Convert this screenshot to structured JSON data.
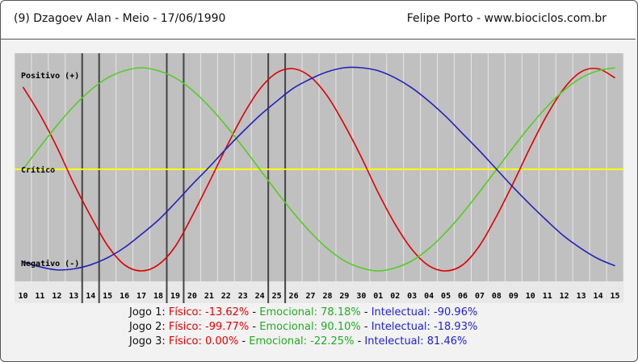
{
  "header": {
    "left": "(9)  Dzagoev Alan - Meio -  17/06/1990",
    "right": "Felipe Porto  -  www.biociclos.com.br"
  },
  "chart_data": {
    "type": "line",
    "x": [
      "10",
      "11",
      "12",
      "13",
      "14",
      "15",
      "16",
      "17",
      "18",
      "19",
      "20",
      "21",
      "22",
      "23",
      "24",
      "25",
      "26",
      "27",
      "28",
      "29",
      "30",
      "01",
      "02",
      "03",
      "04",
      "05",
      "06",
      "07",
      "08",
      "09",
      "10",
      "11",
      "12",
      "13",
      "14",
      "15"
    ],
    "ylim": [
      -1,
      1
    ],
    "grid": true,
    "level_labels": {
      "positive": "Positivo (+)",
      "critical": "Crítico",
      "negative": "Negativo (-)"
    },
    "series": [
      {
        "name": "Físico",
        "color": "#e00000",
        "values": [
          0.81,
          0.54,
          0.22,
          -0.14,
          -0.46,
          -0.75,
          -0.94,
          -1.0,
          -0.94,
          -0.76,
          -0.46,
          -0.13,
          0.21,
          0.53,
          0.79,
          0.95,
          0.99,
          0.91,
          0.72,
          0.44,
          0.12,
          -0.23,
          -0.54,
          -0.79,
          -0.95,
          -1.0,
          -0.94,
          -0.75,
          -0.46,
          -0.13,
          0.22,
          0.54,
          0.8,
          0.96,
          0.99,
          0.9
        ]
      },
      {
        "name": "Emocional",
        "color": "#55cc22",
        "values": [
          0.0,
          0.22,
          0.43,
          0.62,
          0.78,
          0.9,
          0.97,
          1.0,
          0.97,
          0.9,
          0.78,
          0.62,
          0.43,
          0.22,
          0.0,
          -0.22,
          -0.43,
          -0.62,
          -0.78,
          -0.9,
          -0.97,
          -1.0,
          -0.97,
          -0.9,
          -0.78,
          -0.62,
          -0.43,
          -0.22,
          0.0,
          0.22,
          0.43,
          0.62,
          0.78,
          0.9,
          0.97,
          1.0
        ]
      },
      {
        "name": "Intelectual",
        "color": "#2222bb",
        "values": [
          -0.91,
          -0.96,
          -0.99,
          -0.98,
          -0.94,
          -0.87,
          -0.77,
          -0.64,
          -0.5,
          -0.33,
          -0.15,
          0.02,
          0.2,
          0.37,
          0.53,
          0.67,
          0.8,
          0.89,
          0.96,
          1.0,
          1.0,
          0.97,
          0.9,
          0.8,
          0.67,
          0.52,
          0.35,
          0.18,
          0.0,
          -0.18,
          -0.35,
          -0.51,
          -0.66,
          -0.78,
          -0.88,
          -0.95
        ]
      }
    ],
    "markers": [
      "13",
      "14",
      "18",
      "19",
      "24",
      "25"
    ]
  },
  "footer": {
    "jogos": [
      {
        "label": "Jogo 1:",
        "fis": "Físico: -13.62%",
        "emo": "Emocional: 78.18%",
        "int": "Intelectual: -90.96%"
      },
      {
        "label": "Jogo 2:",
        "fis": "Físico: -99.77%",
        "emo": "Emocional: 90.10%",
        "int": "Intelectual: -18.93%"
      },
      {
        "label": "Jogo 3:",
        "fis": "Físico: 0.00%",
        "emo": "Emocional: -22.25%",
        "int": "Intelectual: 81.46%"
      }
    ],
    "sep": "-"
  }
}
